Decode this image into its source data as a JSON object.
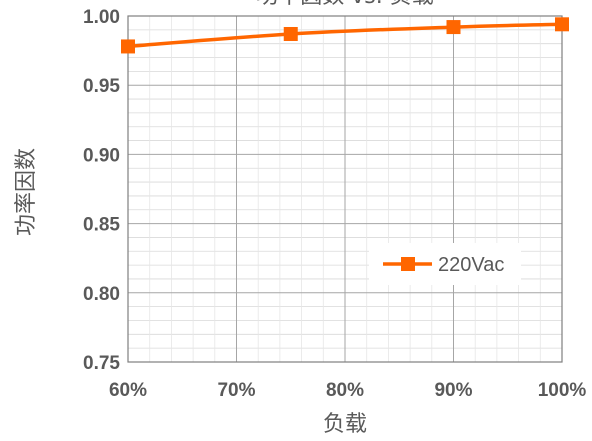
{
  "chart_data": {
    "type": "line",
    "title": "功率因数 vs. 负载",
    "xlabel": "负载",
    "ylabel": "功率因数",
    "x": [
      "60%",
      "75%",
      "90%",
      "100%"
    ],
    "x_values": [
      60,
      75,
      90,
      100
    ],
    "xlim": [
      60,
      100
    ],
    "xticks": [
      "60%",
      "70%",
      "80%",
      "90%",
      "100%"
    ],
    "xtick_values": [
      60,
      70,
      80,
      90,
      100
    ],
    "ylim": [
      0.75,
      1.0
    ],
    "yticks": [
      "0.75",
      "0.80",
      "0.85",
      "0.90",
      "0.95",
      "1.00"
    ],
    "ytick_values": [
      0.75,
      0.8,
      0.85,
      0.9,
      0.95,
      1.0
    ],
    "grid": true,
    "legend_position": "lower-right",
    "series": [
      {
        "name": "220Vac",
        "color": "#FF6600",
        "marker": "square",
        "values": [
          0.978,
          0.987,
          0.992,
          0.994
        ]
      }
    ]
  }
}
